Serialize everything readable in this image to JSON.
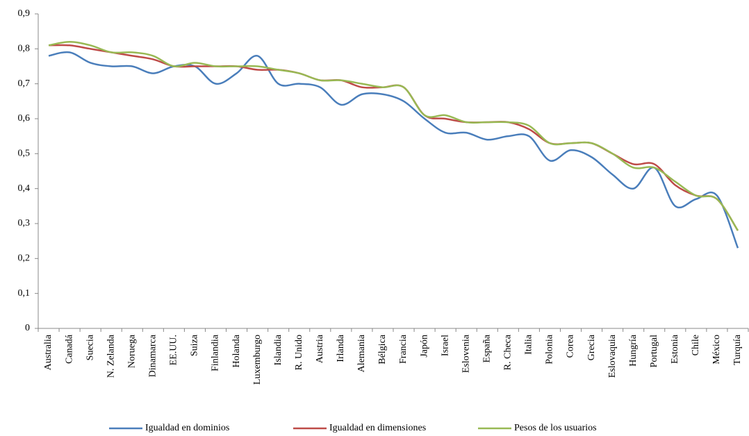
{
  "chart_data": {
    "type": "line",
    "categories": [
      "Australia",
      "Canadá",
      "Suecia",
      "N. Zelanda",
      "Noruega",
      "Dinamarca",
      "EE.UU.",
      "Suiza",
      "Finlandia",
      "Holanda",
      "Luxemburgo",
      "Islandia",
      "R. Unido",
      "Austria",
      "Irlanda",
      "Alemania",
      "Bélgica",
      "Francia",
      "Japón",
      "Israel",
      "Eslovenia",
      "España",
      "R. Checa",
      "Italia",
      "Polonia",
      "Corea",
      "Grecia",
      "Eslovaquia",
      "Hungría",
      "Portugal",
      "Estonia",
      "Chile",
      "México",
      "Turquía"
    ],
    "series": [
      {
        "name": "Igualdad en dominios",
        "color": "#4a7ebb",
        "values": [
          0.78,
          0.79,
          0.76,
          0.75,
          0.75,
          0.73,
          0.75,
          0.75,
          0.7,
          0.73,
          0.78,
          0.7,
          0.7,
          0.69,
          0.64,
          0.67,
          0.67,
          0.65,
          0.6,
          0.56,
          0.56,
          0.54,
          0.55,
          0.55,
          0.48,
          0.51,
          0.49,
          0.44,
          0.4,
          0.46,
          0.35,
          0.37,
          0.38,
          0.23
        ]
      },
      {
        "name": "Igualdad en dimensiones",
        "color": "#be4b48",
        "values": [
          0.81,
          0.81,
          0.8,
          0.79,
          0.78,
          0.77,
          0.75,
          0.75,
          0.75,
          0.75,
          0.74,
          0.74,
          0.73,
          0.71,
          0.71,
          0.69,
          0.69,
          0.69,
          0.61,
          0.6,
          0.59,
          0.59,
          0.59,
          0.57,
          0.53,
          0.53,
          0.53,
          0.5,
          0.47,
          0.47,
          0.41,
          0.38,
          0.37,
          0.28
        ]
      },
      {
        "name": "Pesos de los usuarios",
        "color": "#98b954",
        "values": [
          0.81,
          0.82,
          0.81,
          0.79,
          0.79,
          0.78,
          0.75,
          0.76,
          0.75,
          0.75,
          0.75,
          0.74,
          0.73,
          0.71,
          0.71,
          0.7,
          0.69,
          0.69,
          0.61,
          0.61,
          0.59,
          0.59,
          0.59,
          0.58,
          0.53,
          0.53,
          0.53,
          0.5,
          0.46,
          0.46,
          0.42,
          0.38,
          0.37,
          0.28
        ]
      }
    ],
    "ylim": [
      0,
      0.9
    ],
    "yticks": [
      0,
      {
        "value": 0.1,
        "label": "0,1"
      },
      {
        "value": 0.2,
        "label": "0,2"
      },
      {
        "value": 0.3,
        "label": "0,3"
      },
      {
        "value": 0.4,
        "label": "0,4"
      },
      {
        "value": 0.5,
        "label": "0,5"
      },
      {
        "value": 0.6,
        "label": "0,6"
      },
      {
        "value": 0.7,
        "label": "0,7"
      },
      {
        "value": 0.8,
        "label": "0,8"
      },
      {
        "value": 0.9,
        "label": "0,9"
      }
    ],
    "grid": false,
    "smooth": true,
    "legend": "bottom"
  }
}
